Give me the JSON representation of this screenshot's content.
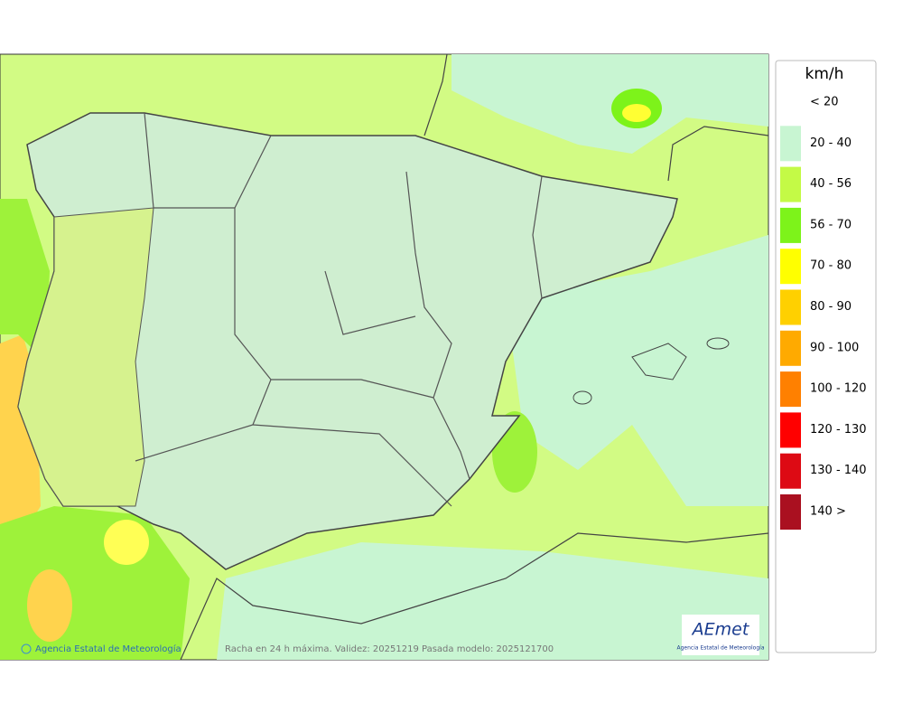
{
  "legend": {
    "title": "km/h",
    "items": [
      {
        "label": "< 20"
      },
      {
        "label": "20 - 40",
        "color": "#c8f5d2"
      },
      {
        "label": "40 - 56",
        "color": "#c4fa46"
      },
      {
        "label": "56 - 70",
        "color": "#7df31a"
      },
      {
        "label": "70 - 80",
        "color": "#ffff00"
      },
      {
        "label": "80 - 90",
        "color": "#ffd000"
      },
      {
        "label": "90 - 100",
        "color": "#ffaa00"
      },
      {
        "label": "100 - 120",
        "color": "#ff8000"
      },
      {
        "label": "120 - 130",
        "color": "#ff0000"
      },
      {
        "label": "130 - 140",
        "color": "#dd0a14"
      },
      {
        "label": "140 >",
        "color": "#aa1020"
      }
    ]
  },
  "footer": {
    "credit": "Agencia Estatal de Meteorología",
    "caption": "Racha en 24 h máxima. Validez: 20251219 Pasada modelo: 2025121700"
  },
  "logo": {
    "name": "AEmet",
    "subtitle": "Agencia Estatal de Meteorología"
  }
}
